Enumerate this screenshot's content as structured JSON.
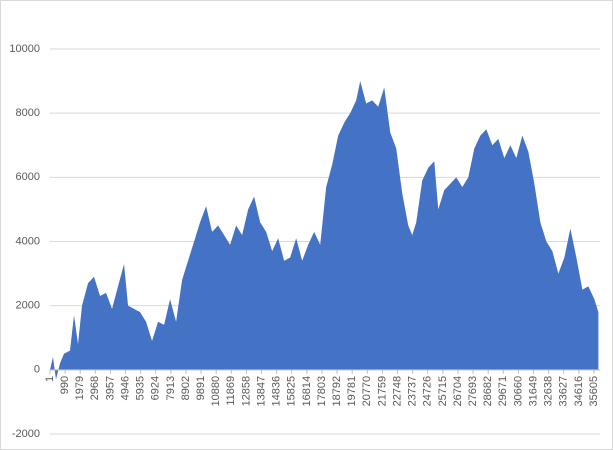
{
  "chart_data": {
    "type": "area",
    "color": "#4472c4",
    "grid": true,
    "x": [
      1,
      196,
      393,
      655,
      917,
      1310,
      1572,
      1834,
      2096,
      2489,
      2882,
      3275,
      3668,
      4061,
      4454,
      4847,
      5109,
      5502,
      5895,
      6288,
      6681,
      7074,
      7467,
      7860,
      8253,
      8646,
      9039,
      9432,
      9825,
      10218,
      10611,
      11004,
      11397,
      11790,
      12183,
      12576,
      12969,
      13362,
      13755,
      14148,
      14541,
      14934,
      15327,
      15720,
      16113,
      16506,
      16899,
      17292,
      17685,
      18078,
      18471,
      18864,
      19257,
      19650,
      20043,
      20305,
      20698,
      21091,
      21484,
      21877,
      22270,
      22663,
      23056,
      23449,
      23711,
      23973,
      24366,
      24759,
      25152,
      25414,
      25807,
      26200,
      26593,
      26986,
      27379,
      27772,
      28165,
      28558,
      28951,
      29344,
      29737,
      30130,
      30523,
      30916,
      31309,
      31702,
      32095,
      32488,
      32881,
      33274,
      33667,
      34060,
      34453,
      34846,
      35239,
      35632,
      35894
    ],
    "values": [
      0,
      400,
      -300,
      200,
      500,
      600,
      1700,
      800,
      2000,
      2700,
      2900,
      2300,
      2400,
      1900,
      2600,
      3300,
      2000,
      1900,
      1800,
      1500,
      900,
      1500,
      1400,
      2200,
      1500,
      2800,
      3400,
      4000,
      4600,
      5100,
      4300,
      4500,
      4200,
      3900,
      4500,
      4200,
      5000,
      5400,
      4600,
      4300,
      3700,
      4100,
      3400,
      3500,
      4100,
      3400,
      3900,
      4300,
      3900,
      5700,
      6400,
      7300,
      7700,
      8000,
      8400,
      9000,
      8300,
      8400,
      8200,
      8800,
      7400,
      6900,
      5500,
      4500,
      4200,
      4600,
      5900,
      6300,
      6500,
      5000,
      5600,
      5800,
      6000,
      5700,
      6000,
      6900,
      7300,
      7500,
      7000,
      7200,
      6600,
      7000,
      6600,
      7300,
      6800,
      5800,
      4600,
      4000,
      3700,
      3000,
      3500,
      4400,
      3500,
      2500,
      2600,
      2200,
      1800
    ],
    "xlim": [
      1,
      36000
    ],
    "xticks": [
      1,
      990,
      1979,
      2968,
      3957,
      4946,
      5935,
      6924,
      7913,
      8902,
      9891,
      10880,
      11869,
      12858,
      13847,
      14836,
      15825,
      16814,
      17803,
      18792,
      19781,
      20770,
      21759,
      22748,
      23737,
      24726,
      25715,
      26704,
      27693,
      28682,
      29671,
      30660,
      31649,
      32638,
      33627,
      34616,
      35605
    ],
    "ylim": [
      -2000,
      10000
    ],
    "yticks": [
      -2000,
      0,
      2000,
      4000,
      6000,
      8000,
      10000
    ]
  }
}
